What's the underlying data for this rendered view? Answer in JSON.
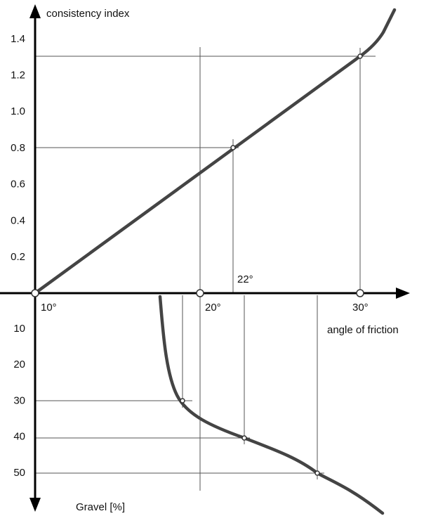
{
  "y_axis_top": {
    "label": "consistency index",
    "ticks": [
      "0.2",
      "0.4",
      "0.6",
      "0.8",
      "1.0",
      "1.2",
      "1.4"
    ]
  },
  "x_axis": {
    "label": "angle of friction",
    "ticks": [
      "10°",
      "20°",
      "30°"
    ]
  },
  "y_axis_bottom": {
    "label": "Gravel [%]",
    "ticks": [
      "10",
      "20",
      "30",
      "40",
      "50"
    ]
  },
  "annotation": "22°"
}
